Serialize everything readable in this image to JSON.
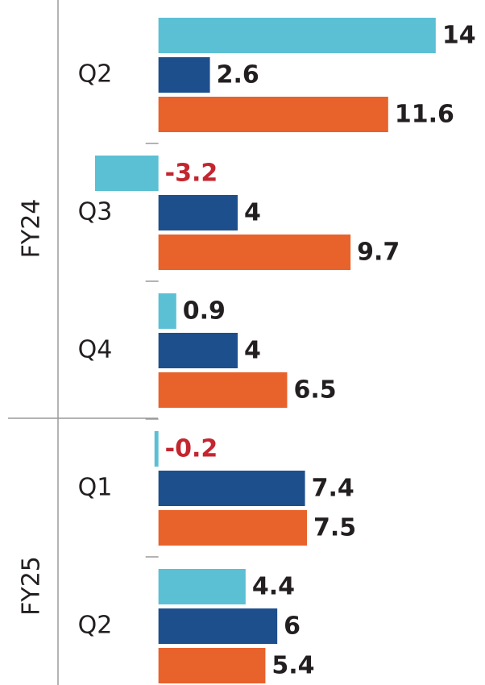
{
  "chart_data": {
    "type": "grouped-hbar",
    "groups": [
      {
        "label": "FY24",
        "count": 3
      },
      {
        "label": "FY25",
        "count": 2
      }
    ],
    "categories": [
      "Q2",
      "Q3",
      "Q4",
      "Q1",
      "Q2"
    ],
    "series": [
      {
        "color": "#5bc0d4",
        "values": [
          14,
          -3.2,
          0.9,
          -0.2,
          4.4
        ]
      },
      {
        "color": "#1e4f8d",
        "values": [
          2.6,
          4,
          4,
          7.4,
          6
        ]
      },
      {
        "color": "#e8622c",
        "values": [
          11.6,
          9.7,
          6.5,
          7.5,
          5.4
        ]
      }
    ],
    "xlim": [
      -8,
      16
    ],
    "negative_label_color": "#c3262f",
    "label_color": "#231f20"
  }
}
